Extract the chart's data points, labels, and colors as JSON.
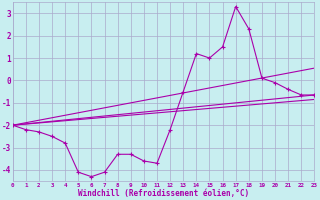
{
  "bg_color": "#c8eef0",
  "grid_color": "#aaaacc",
  "line_color": "#aa00aa",
  "xlabel": "Windchill (Refroidissement éolien,°C)",
  "xlim": [
    0,
    23
  ],
  "ylim": [
    -4.5,
    3.5
  ],
  "yticks": [
    -4,
    -3,
    -2,
    -1,
    0,
    1,
    2,
    3
  ],
  "xticks": [
    0,
    1,
    2,
    3,
    4,
    5,
    6,
    7,
    8,
    9,
    10,
    11,
    12,
    13,
    14,
    15,
    16,
    17,
    18,
    19,
    20,
    21,
    22,
    23
  ],
  "series_x": [
    0,
    1,
    2,
    3,
    4,
    5,
    6,
    7,
    8,
    9,
    10,
    11,
    12,
    13,
    14,
    15,
    16,
    17,
    18,
    19,
    20,
    21,
    22,
    23
  ],
  "series_y": [
    -2.0,
    -2.2,
    -2.3,
    -2.5,
    -2.8,
    -4.1,
    -4.3,
    -4.1,
    -3.3,
    -3.3,
    -3.6,
    -3.7,
    -2.2,
    -0.5,
    1.2,
    1.0,
    1.5,
    3.3,
    2.3,
    0.1,
    -0.1,
    -0.4,
    -0.65,
    -0.65
  ],
  "straight_lines": [
    {
      "x": [
        0,
        23
      ],
      "y": [
        -2.0,
        0.55
      ]
    },
    {
      "x": [
        0,
        23
      ],
      "y": [
        -2.0,
        -0.65
      ]
    },
    {
      "x": [
        0,
        23
      ],
      "y": [
        -2.0,
        -0.85
      ]
    }
  ]
}
